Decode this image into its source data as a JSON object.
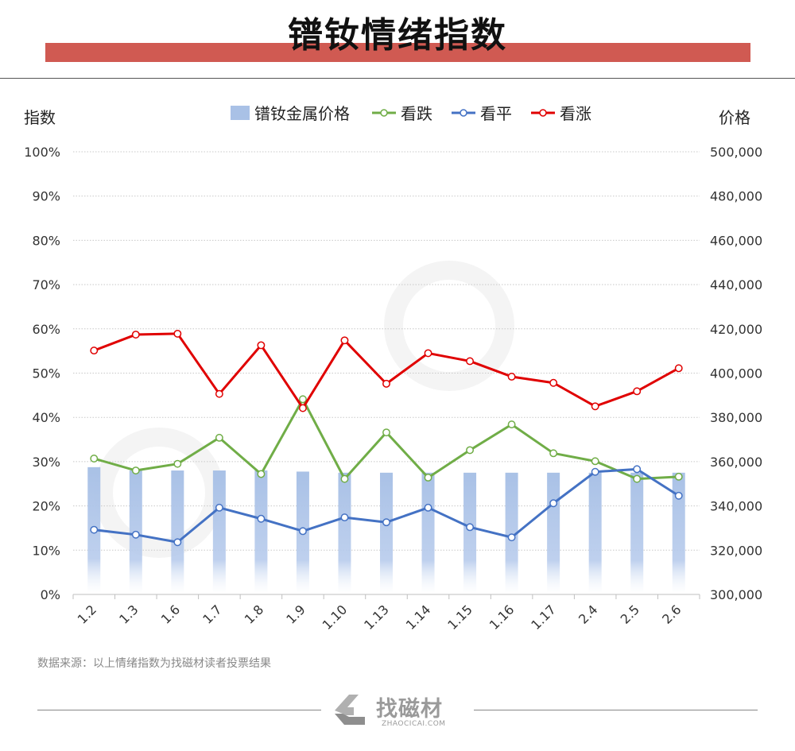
{
  "page": {
    "title": "镨钕情绪指数",
    "source_note": "数据来源：以上情绪指数为找磁材读者投票结果",
    "footer_brand": "找磁材",
    "footer_domain": "ZHAOCICAI.COM"
  },
  "chart_data": {
    "type": "bar+line",
    "categories": [
      "1.2",
      "1.3",
      "1.6",
      "1.7",
      "1.8",
      "1.9",
      "1.10",
      "1.13",
      "1.14",
      "1.15",
      "1.16",
      "1.17",
      "2.4",
      "2.5",
      "2.6"
    ],
    "y_left": {
      "label": "指数",
      "min": 0,
      "max": 100,
      "step": 10,
      "ticks": [
        "0%",
        "10%",
        "20%",
        "30%",
        "40%",
        "50%",
        "60%",
        "70%",
        "80%",
        "90%",
        "100%"
      ]
    },
    "y_right": {
      "label": "价格",
      "min": 300000,
      "max": 500000,
      "step": 20000,
      "ticks": [
        "300,000",
        "320,000",
        "340,000",
        "360,000",
        "380,000",
        "400,000",
        "420,000",
        "440,000",
        "460,000",
        "480,000",
        "500,000"
      ]
    },
    "legend_position": "top",
    "grid": true,
    "bar_series": {
      "name": "镨钕金属价格",
      "axis": "right",
      "color": "#a9c1e6",
      "values": [
        357500,
        356000,
        356000,
        356000,
        356000,
        355500,
        355000,
        355000,
        355000,
        355000,
        355000,
        355000,
        355000,
        355000,
        355000
      ]
    },
    "line_series": [
      {
        "name": "看跌",
        "axis": "left",
        "color": "#70ad47",
        "values": [
          30.7,
          28.0,
          29.5,
          35.4,
          27.2,
          44.1,
          26.1,
          36.6,
          26.4,
          32.6,
          38.4,
          31.9,
          30.1,
          26.1,
          26.6
        ]
      },
      {
        "name": "看平",
        "axis": "left",
        "color": "#4472c4",
        "values": [
          14.6,
          13.5,
          11.8,
          19.6,
          17.1,
          14.3,
          17.4,
          16.3,
          19.6,
          15.2,
          12.9,
          20.6,
          27.7,
          28.3,
          22.3
        ]
      },
      {
        "name": "看涨",
        "axis": "left",
        "color": "#e00000",
        "values": [
          55.1,
          58.7,
          58.9,
          45.3,
          56.3,
          42.1,
          57.4,
          47.6,
          54.5,
          52.7,
          49.2,
          47.8,
          42.5,
          45.9,
          51.1
        ]
      }
    ]
  }
}
